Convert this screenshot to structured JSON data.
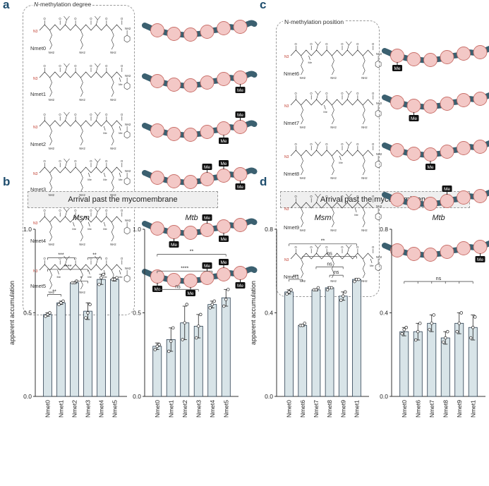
{
  "panels": {
    "a": "a",
    "b": "b",
    "c": "c",
    "d": "d"
  },
  "panel_a": {
    "box_title_italic": "N",
    "box_title_rest": "-methylation degree",
    "molecules": [
      "Nmet0",
      "Nmet1",
      "Nmet2",
      "Nmet3",
      "Nmet4",
      "Nmet5"
    ],
    "methyl_label": "Me",
    "methyl_positions": [
      [],
      [
        5
      ],
      [
        4,
        5
      ],
      [
        3,
        4,
        5
      ],
      [
        2,
        3,
        4
      ],
      [
        1,
        3,
        4,
        5
      ]
    ]
  },
  "panel_c": {
    "box_title": "N-methylation position",
    "molecules": [
      "Nmet6",
      "Nmet7",
      "Nmet8",
      "Nmet9",
      "Nmet1"
    ],
    "methyl_label": "Me",
    "methyl_positions": [
      [
        1
      ],
      [
        2
      ],
      [
        3
      ],
      [
        4
      ],
      [
        5
      ]
    ]
  },
  "chem_labels": {
    "azide": "N3",
    "amine": "NH2",
    "amide": "NH2",
    "methyl": "Me"
  },
  "banner_b": "Arrival past the mycomembrane",
  "banner_d": "Arrival past the mycomembrane",
  "chart_data": [
    {
      "type": "bar",
      "title": "Msm",
      "ylabel": "apparent accumulation",
      "categories": [
        "Nmet0",
        "Nmet1",
        "Nmet2",
        "Nmet3",
        "Nmet4",
        "Nmet5"
      ],
      "values": [
        0.49,
        0.56,
        0.68,
        0.51,
        0.7,
        0.7
      ],
      "errors": [
        0.01,
        0.01,
        0.005,
        0.05,
        0.03,
        0.01
      ],
      "points": [
        [
          0.48,
          0.49,
          0.5
        ],
        [
          0.55,
          0.56,
          0.57
        ],
        [
          0.68,
          0.68,
          0.69
        ],
        [
          0.47,
          0.5,
          0.55
        ],
        [
          0.67,
          0.71,
          0.73
        ],
        [
          0.7,
          0.7,
          0.71
        ]
      ],
      "ylim": [
        0,
        1.0
      ],
      "yticks": [
        0.0,
        0.5,
        1.0
      ],
      "yticklabels": [
        "0.0",
        "0.5",
        "1.0"
      ],
      "significance": [
        {
          "from": 0,
          "to": 1,
          "label": "**",
          "y": 0.61
        },
        {
          "from": 0,
          "to": 2,
          "label": "***",
          "y": 0.83
        },
        {
          "from": 0,
          "to": 3,
          "label": "****",
          "y": 0.76
        },
        {
          "from": 2,
          "to": 3,
          "label": "*",
          "y": 0.69
        },
        {
          "from": 3,
          "to": 4,
          "label": "**",
          "y": 0.83
        }
      ]
    },
    {
      "type": "bar",
      "title": "Mtb",
      "ylabel": "",
      "categories": [
        "Nmet0",
        "Nmet1",
        "Nmet2",
        "Nmet3",
        "Nmet4",
        "Nmet5"
      ],
      "values": [
        0.3,
        0.34,
        0.44,
        0.42,
        0.55,
        0.59
      ],
      "errors": [
        0.02,
        0.07,
        0.1,
        0.07,
        0.02,
        0.05
      ],
      "points": [
        [
          0.28,
          0.3,
          0.31
        ],
        [
          0.27,
          0.33,
          0.41
        ],
        [
          0.34,
          0.44,
          0.55
        ],
        [
          0.35,
          0.42,
          0.49
        ],
        [
          0.53,
          0.55,
          0.57
        ],
        [
          0.54,
          0.58,
          0.64
        ]
      ],
      "ylim": [
        0,
        1.0
      ],
      "yticks": [
        0.0,
        0.5,
        1.0
      ],
      "yticklabels": [
        "0.0",
        "0.5",
        "1.0"
      ],
      "significance": [
        {
          "from": 0,
          "to": 5,
          "label": "**",
          "y": 0.85
        },
        {
          "from": 0,
          "to": 4,
          "label": "****",
          "y": 0.75
        },
        {
          "from": 0,
          "to": 3,
          "label": "ns",
          "y": 0.64
        }
      ]
    },
    {
      "type": "bar",
      "title": "Msm",
      "ylabel": "apparent accumulation",
      "categories": [
        "Nmet0",
        "Nmet6",
        "Nmet7",
        "Nmet8",
        "Nmet9",
        "Nmet1"
      ],
      "values": [
        0.5,
        0.34,
        0.51,
        0.52,
        0.48,
        0.56
      ],
      "errors": [
        0.01,
        0.005,
        0.005,
        0.005,
        0.02,
        0.005
      ],
      "points": [
        [
          0.49,
          0.5,
          0.51
        ],
        [
          0.34,
          0.34,
          0.35
        ],
        [
          0.51,
          0.51,
          0.52
        ],
        [
          0.51,
          0.52,
          0.52
        ],
        [
          0.46,
          0.48,
          0.5
        ],
        [
          0.55,
          0.56,
          0.56
        ]
      ],
      "ylim": [
        0,
        0.8
      ],
      "yticks": [
        0.0,
        0.4,
        0.8
      ],
      "yticklabels": [
        "0.0",
        "0.4",
        "0.8"
      ],
      "significance": [
        {
          "from": 0,
          "to": 5,
          "label": "**",
          "y": 0.73
        },
        {
          "from": 0,
          "to": 1,
          "label": "***",
          "y": 0.56
        },
        {
          "from": 1,
          "to": 5,
          "label": "ns",
          "y": 0.67
        },
        {
          "from": 2,
          "to": 4,
          "label": "ns",
          "y": 0.62
        },
        {
          "from": 3,
          "to": 4,
          "label": "ns",
          "y": 0.58
        }
      ]
    },
    {
      "type": "bar",
      "title": "Mtb",
      "ylabel": "",
      "categories": [
        "Nmet0",
        "Nmet6",
        "Nmet7",
        "Nmet8",
        "Nmet9",
        "Nmet1"
      ],
      "values": [
        0.31,
        0.31,
        0.35,
        0.28,
        0.35,
        0.33
      ],
      "errors": [
        0.02,
        0.04,
        0.04,
        0.03,
        0.05,
        0.06
      ],
      "points": [
        [
          0.3,
          0.32,
          0.33
        ],
        [
          0.27,
          0.31,
          0.35
        ],
        [
          0.32,
          0.35,
          0.39
        ],
        [
          0.26,
          0.28,
          0.31
        ],
        [
          0.31,
          0.35,
          0.4
        ],
        [
          0.28,
          0.33,
          0.38
        ]
      ],
      "ylim": [
        0,
        0.8
      ],
      "yticks": [
        0.0,
        0.4,
        0.8
      ],
      "yticklabels": [
        "0.0",
        "0.4",
        "0.8"
      ],
      "significance": [
        {
          "from": 0,
          "to": 5,
          "label": "ns",
          "y": 0.55,
          "ticks": [
            1,
            2,
            3,
            4
          ]
        }
      ]
    }
  ]
}
